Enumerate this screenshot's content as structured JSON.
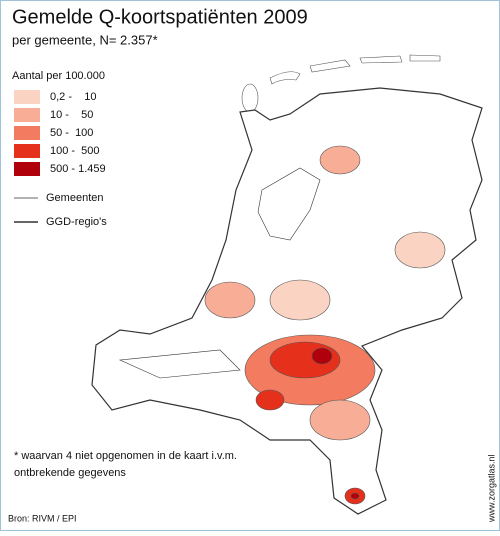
{
  "title": "Gemelde Q-koortspatiënten 2009",
  "subtitle": "per gemeente, N= 2.357*",
  "legend": {
    "title": "Aantal per 100.000",
    "items": [
      {
        "label": "0,2 -    10",
        "color": "#fbd3c3"
      },
      {
        "label": "10 -    50",
        "color": "#f7ad96"
      },
      {
        "label": "50 -  100",
        "color": "#f27b60"
      },
      {
        "label": "100 -  500",
        "color": "#e5301c"
      },
      {
        "label": "500 - 1.459",
        "color": "#b0000c"
      }
    ],
    "lines": [
      {
        "label": "Gemeenten",
        "width": 0.8
      },
      {
        "label": "GGD-regio's",
        "width": 1.6
      }
    ]
  },
  "footnote": [
    "* waarvan 4 niet opgenomen in de kaart i.v.m.",
    "ontbrekende gegevens"
  ],
  "source": "Bron: RIVM / EPI",
  "credit": "www.zorgatlas.nl"
}
